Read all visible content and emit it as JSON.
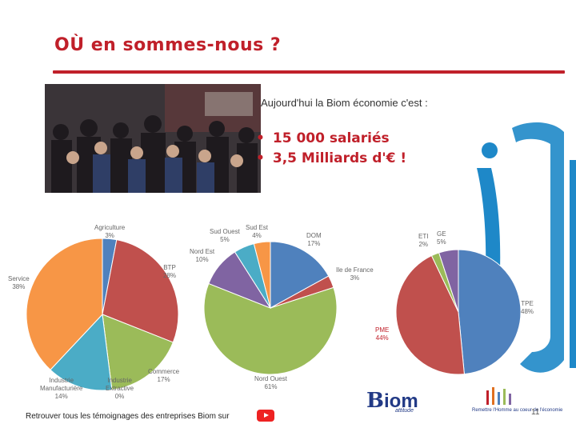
{
  "slide": {
    "title": "OÙ en sommes-nous ?",
    "intro": "Aujourd'hui la Biom économie c'est :",
    "bullets": [
      "15 000 salariés",
      "3,5 Milliards d'€ !"
    ],
    "footer": "Retrouver tous les témoignages des entreprises Biom sur",
    "page_number": "11",
    "logo_text": {
      "b": "B",
      "rest": "iom",
      "sub": "attitude"
    },
    "logo2_caption": "Remettre l'Homme au coeur de l'économie"
  },
  "chart_data": [
    {
      "type": "pie",
      "title": "",
      "categories": [
        "Agriculture",
        "BTP",
        "Commerce",
        "Industrie Extractive",
        "Industrie Manufacturière",
        "Service"
      ],
      "values": [
        3,
        28,
        17,
        0,
        14,
        38
      ],
      "labels": [
        {
          "name": "Agriculture",
          "pct": "3%"
        },
        {
          "name": "BTP",
          "pct": "28%"
        },
        {
          "name": "Commerce",
          "pct": "17%"
        },
        {
          "name": "Industrie Extractive",
          "pct": "0%"
        },
        {
          "name": "Industrie Manufacturière",
          "pct": "14%"
        },
        {
          "name": "Service",
          "pct": "38%"
        }
      ],
      "colors": [
        "#4f81bd",
        "#c0504d",
        "#9bbb59",
        "#8064a2",
        "#4bacc6",
        "#f79646"
      ]
    },
    {
      "type": "pie",
      "title": "",
      "categories": [
        "DOM",
        "Ile de France",
        "Nord Ouest",
        "Nord Est",
        "Sud Ouest",
        "Sud Est"
      ],
      "values": [
        17,
        3,
        61,
        10,
        5,
        4
      ],
      "labels": [
        {
          "name": "DOM",
          "pct": "17%"
        },
        {
          "name": "Ile de France",
          "pct": "3%"
        },
        {
          "name": "Nord Ouest",
          "pct": "61%"
        },
        {
          "name": "Nord Est",
          "pct": "10%"
        },
        {
          "name": "Sud Ouest",
          "pct": "5%"
        },
        {
          "name": "Sud Est",
          "pct": "4%"
        }
      ],
      "colors": [
        "#4f81bd",
        "#c0504d",
        "#9bbb59",
        "#8064a2",
        "#4bacc6",
        "#f79646"
      ]
    },
    {
      "type": "pie",
      "title": "",
      "categories": [
        "TPE",
        "PME",
        "ETI",
        "GE"
      ],
      "values": [
        48,
        44,
        2,
        5
      ],
      "labels": [
        {
          "name": "TPE",
          "pct": "48%"
        },
        {
          "name": "PME",
          "pct": "44%"
        },
        {
          "name": "ETI",
          "pct": "2%"
        },
        {
          "name": "GE",
          "pct": "5%"
        }
      ],
      "colors": [
        "#4f81bd",
        "#c0504d",
        "#9bbb59",
        "#8064a2"
      ]
    }
  ]
}
